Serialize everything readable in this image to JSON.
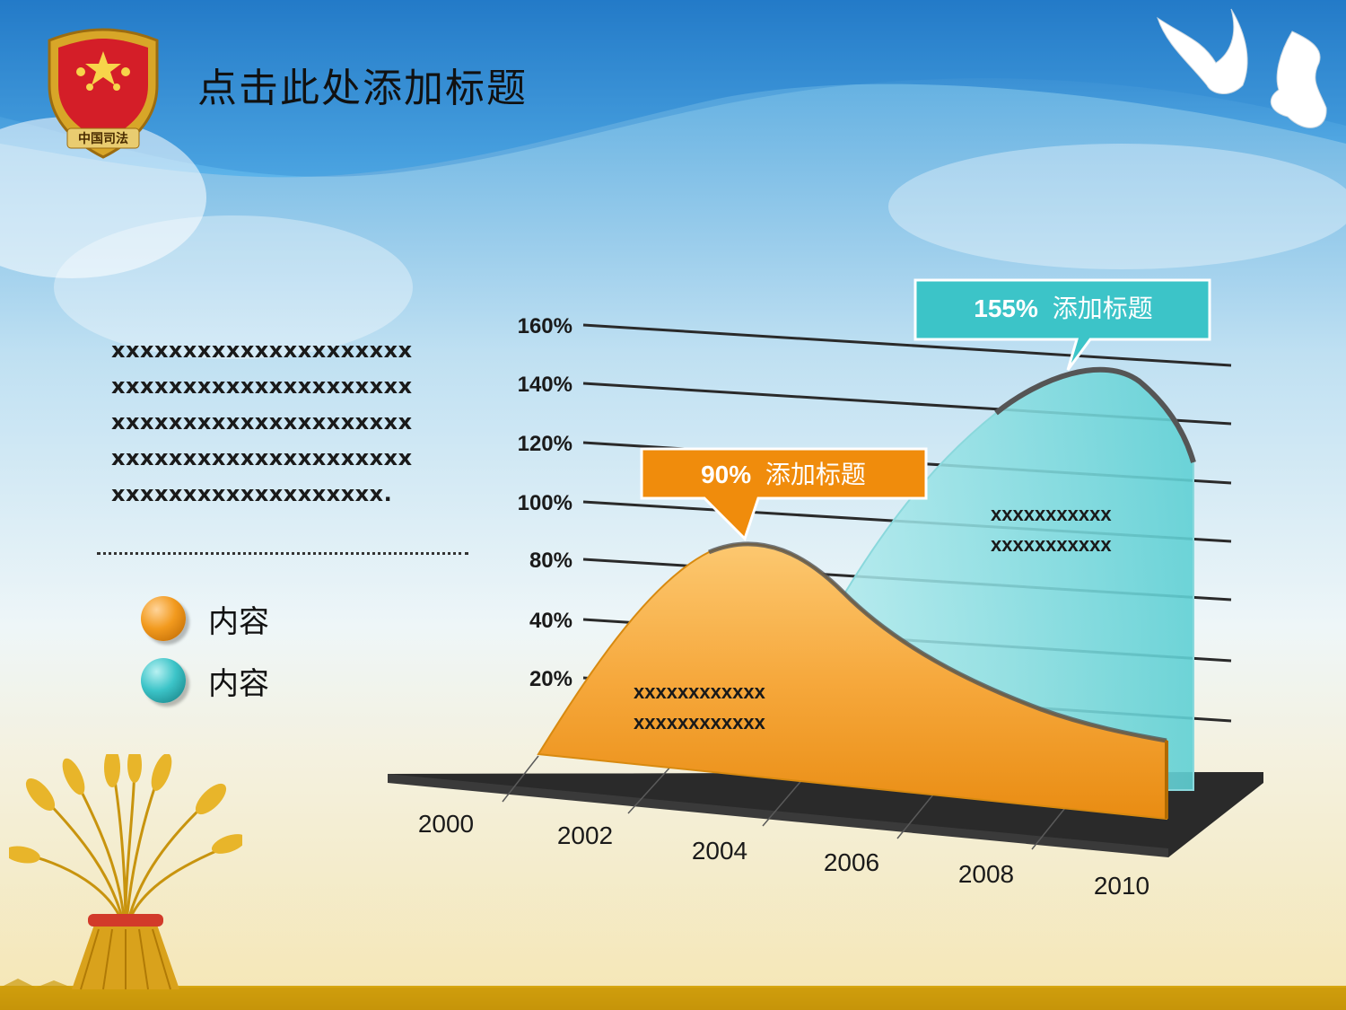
{
  "page": {
    "title": "点击此处添加标题",
    "logo_text": "中国司法",
    "body_text": "xxxxxxxxxxxxxxxxxxxxx\nxxxxxxxxxxxxxxxxxxxxx\nxxxxxxxxxxxxxxxxxxxxx\nxxxxxxxxxxxxxxxxxxxxx\nxxxxxxxxxxxxxxxxxxx.",
    "legend": [
      {
        "label": "内容",
        "color": "#F29A1E"
      },
      {
        "label": "内容",
        "color": "#3CC4C8"
      }
    ]
  },
  "chart_data": {
    "type": "area",
    "x": [
      "2000",
      "2002",
      "2004",
      "2006",
      "2008",
      "2010"
    ],
    "y_ticks": [
      "20%",
      "40%",
      "80%",
      "100%",
      "120%",
      "140%",
      "160%"
    ],
    "series": [
      {
        "color": "#F29A1E",
        "callout_value": "90%",
        "callout_title": "添加标题",
        "inner_text": [
          "xxxxxxxxxxxx",
          "xxxxxxxxxxxx"
        ]
      },
      {
        "color": "#3CC4C8",
        "callout_value": "155%",
        "callout_title": "添加标题",
        "inner_text": [
          "xxxxxxxxxxx",
          "xxxxxxxxxxx"
        ]
      }
    ],
    "grid": true
  }
}
